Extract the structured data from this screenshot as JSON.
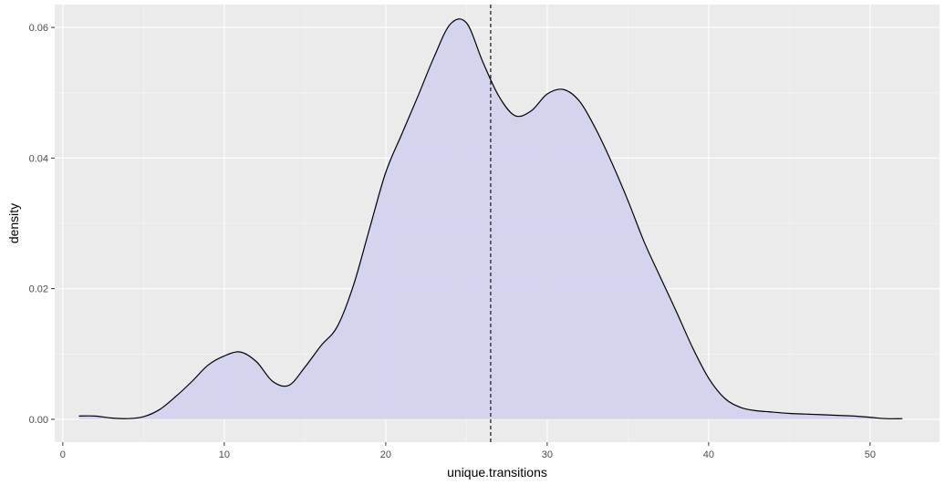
{
  "chart_data": {
    "type": "area",
    "title": "",
    "xlabel": "unique.transitions",
    "ylabel": "density",
    "xlim": [
      -0.5,
      54.3
    ],
    "ylim": [
      -0.0035,
      0.0635
    ],
    "x_ticks": [
      0,
      10,
      20,
      30,
      40,
      50
    ],
    "x_tick_labels": [
      "0",
      "10",
      "20",
      "30",
      "40",
      "50"
    ],
    "y_ticks": [
      0.0,
      0.02,
      0.04,
      0.06
    ],
    "y_tick_labels": [
      "0.00",
      "0.02",
      "0.04",
      "0.06"
    ],
    "grid": true,
    "legend": "none",
    "mean_line": {
      "x": 26.5,
      "style": "dashed"
    },
    "series": [
      {
        "x": [
          1,
          2,
          3,
          4,
          5,
          6,
          7,
          8,
          9,
          10,
          11,
          12,
          13,
          14,
          15,
          16,
          17,
          18,
          19,
          20,
          21,
          22,
          23,
          24,
          25,
          26,
          27,
          28,
          29,
          30,
          31,
          32,
          33,
          34,
          35,
          36,
          37,
          38,
          39,
          40,
          41,
          42,
          43,
          44,
          45,
          46,
          47,
          48,
          49,
          50,
          51,
          52
        ],
        "y": [
          0.0005,
          0.0005,
          0.0002,
          0.0001,
          0.0004,
          0.0015,
          0.0035,
          0.0058,
          0.0083,
          0.0097,
          0.0103,
          0.0088,
          0.0058,
          0.0052,
          0.008,
          0.0113,
          0.0142,
          0.0205,
          0.0292,
          0.0378,
          0.0437,
          0.0495,
          0.0555,
          0.0605,
          0.0607,
          0.0548,
          0.0495,
          0.0465,
          0.0472,
          0.0498,
          0.0505,
          0.0487,
          0.0445,
          0.0393,
          0.0335,
          0.0272,
          0.0218,
          0.0165,
          0.011,
          0.0063,
          0.0032,
          0.0018,
          0.0013,
          0.0011,
          0.0009,
          0.0008,
          0.0007,
          0.0006,
          0.0005,
          0.0003,
          0.0001,
          0.0001
        ]
      }
    ],
    "colors": {
      "panel": "#ebebeb",
      "grid_major": "#ffffff",
      "fill": "#d3d3ef",
      "line": "#000000"
    }
  }
}
